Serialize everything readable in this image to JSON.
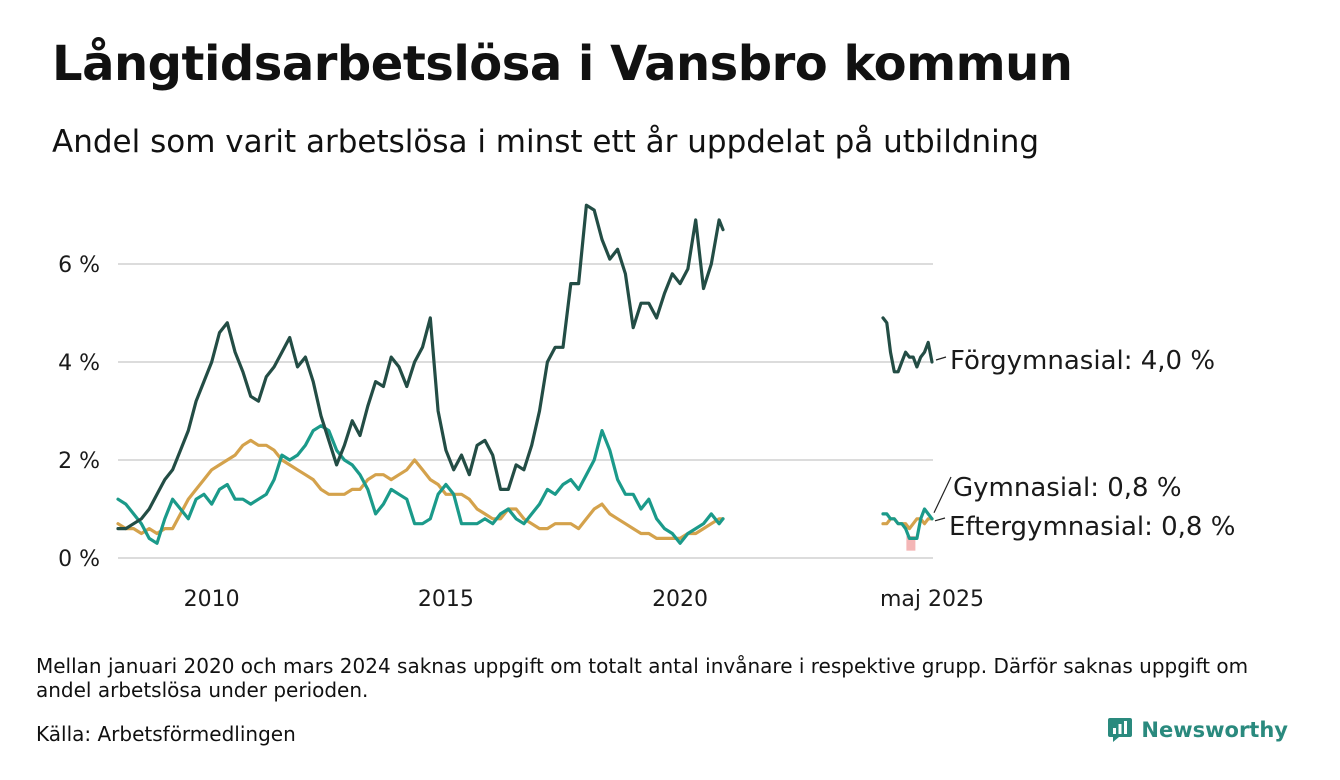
{
  "title": "Långtidsarbetslösa i Vansbro kommun",
  "subtitle": "Andel som varit arbetslösa i minst ett år uppdelat på utbildning",
  "note": "Mellan januari 2020 och mars 2024 saknas uppgift om totalt antal invånare i respektive grupp. Därför saknas uppgift om andel arbetslösa under perioden.",
  "source": "Källa: Arbetsförmedlingen",
  "brand": "Newsworthy",
  "colors": {
    "Förgymnasial": "#234d45",
    "Gymnasial": "#1b9a8a",
    "Eftergymnasial": "#d4a24c",
    "grid": "#dcdcdc",
    "marker": "#f4b6b6",
    "brand": "#2a8a7e"
  },
  "chart_data": {
    "type": "line",
    "title": "Långtidsarbetslösa i Vansbro kommun",
    "ylabel": "",
    "ylim": [
      0,
      7.5
    ],
    "yticks": [
      0,
      2,
      4,
      6
    ],
    "ytick_labels": [
      "0 %",
      "2 %",
      "4 %",
      "6 %"
    ],
    "xtick_labels": [
      "2010",
      "2015",
      "2020",
      "maj 2025"
    ],
    "grid": true,
    "legend": "end-of-line labels (right)",
    "end_labels": [
      {
        "series": "Förgymnasial",
        "text": "Förgymnasial: 4,0 %"
      },
      {
        "series": "Gymnasial",
        "text": "Gymnasial: 0,8 %"
      },
      {
        "series": "Eftergymnasial",
        "text": "Eftergymnasial: 0,8 %"
      }
    ],
    "segments": [
      {
        "label": "2008–2020",
        "x_start": "2008-01",
        "x_end": "2020-12"
      },
      {
        "label": "2024–2025",
        "x_start": "2024-04",
        "x_end": "2025-05"
      }
    ],
    "series": [
      {
        "name": "Förgymnasial",
        "points": [
          [
            "2008-01",
            0.6
          ],
          [
            "2008-03",
            0.6
          ],
          [
            "2008-05",
            0.7
          ],
          [
            "2008-07",
            0.8
          ],
          [
            "2008-09",
            1.0
          ],
          [
            "2008-11",
            1.3
          ],
          [
            "2009-01",
            1.6
          ],
          [
            "2009-03",
            1.8
          ],
          [
            "2009-05",
            2.2
          ],
          [
            "2009-07",
            2.6
          ],
          [
            "2009-09",
            3.2
          ],
          [
            "2009-11",
            3.6
          ],
          [
            "2010-01",
            4.0
          ],
          [
            "2010-03",
            4.6
          ],
          [
            "2010-05",
            4.8
          ],
          [
            "2010-07",
            4.2
          ],
          [
            "2010-09",
            3.8
          ],
          [
            "2010-11",
            3.3
          ],
          [
            "2011-01",
            3.2
          ],
          [
            "2011-03",
            3.7
          ],
          [
            "2011-05",
            3.9
          ],
          [
            "2011-07",
            4.2
          ],
          [
            "2011-09",
            4.5
          ],
          [
            "2011-11",
            3.9
          ],
          [
            "2012-01",
            4.1
          ],
          [
            "2012-03",
            3.6
          ],
          [
            "2012-05",
            2.9
          ],
          [
            "2012-07",
            2.4
          ],
          [
            "2012-09",
            1.9
          ],
          [
            "2012-11",
            2.3
          ],
          [
            "2013-01",
            2.8
          ],
          [
            "2013-03",
            2.5
          ],
          [
            "2013-05",
            3.1
          ],
          [
            "2013-07",
            3.6
          ],
          [
            "2013-09",
            3.5
          ],
          [
            "2013-11",
            4.1
          ],
          [
            "2014-01",
            3.9
          ],
          [
            "2014-03",
            3.5
          ],
          [
            "2014-05",
            4.0
          ],
          [
            "2014-07",
            4.3
          ],
          [
            "2014-09",
            4.9
          ],
          [
            "2014-11",
            3.0
          ],
          [
            "2015-01",
            2.2
          ],
          [
            "2015-03",
            1.8
          ],
          [
            "2015-05",
            2.1
          ],
          [
            "2015-07",
            1.7
          ],
          [
            "2015-09",
            2.3
          ],
          [
            "2015-11",
            2.4
          ],
          [
            "2016-01",
            2.1
          ],
          [
            "2016-03",
            1.4
          ],
          [
            "2016-05",
            1.4
          ],
          [
            "2016-07",
            1.9
          ],
          [
            "2016-09",
            1.8
          ],
          [
            "2016-11",
            2.3
          ],
          [
            "2017-01",
            3.0
          ],
          [
            "2017-03",
            4.0
          ],
          [
            "2017-05",
            4.3
          ],
          [
            "2017-07",
            4.3
          ],
          [
            "2017-09",
            5.6
          ],
          [
            "2017-11",
            5.6
          ],
          [
            "2018-01",
            7.2
          ],
          [
            "2018-03",
            7.1
          ],
          [
            "2018-05",
            6.5
          ],
          [
            "2018-07",
            6.1
          ],
          [
            "2018-09",
            6.3
          ],
          [
            "2018-11",
            5.8
          ],
          [
            "2019-01",
            4.7
          ],
          [
            "2019-03",
            5.2
          ],
          [
            "2019-05",
            5.2
          ],
          [
            "2019-07",
            4.9
          ],
          [
            "2019-09",
            5.4
          ],
          [
            "2019-11",
            5.8
          ],
          [
            "2020-01",
            5.6
          ],
          [
            "2020-03",
            5.9
          ],
          [
            "2020-05",
            6.9
          ],
          [
            "2020-07",
            5.5
          ],
          [
            "2020-09",
            6.0
          ],
          [
            "2020-11",
            6.9
          ],
          [
            "2020-12",
            6.7
          ],
          [
            "2024-04",
            4.9
          ],
          [
            "2024-05",
            4.8
          ],
          [
            "2024-06",
            4.2
          ],
          [
            "2024-07",
            3.8
          ],
          [
            "2024-08",
            3.8
          ],
          [
            "2024-09",
            4.0
          ],
          [
            "2024-10",
            4.2
          ],
          [
            "2024-11",
            4.1
          ],
          [
            "2024-12",
            4.1
          ],
          [
            "2025-01",
            3.9
          ],
          [
            "2025-02",
            4.1
          ],
          [
            "2025-03",
            4.2
          ],
          [
            "2025-04",
            4.4
          ],
          [
            "2025-05",
            4.0
          ]
        ]
      },
      {
        "name": "Gymnasial",
        "points": [
          [
            "2008-01",
            1.2
          ],
          [
            "2008-03",
            1.1
          ],
          [
            "2008-05",
            0.9
          ],
          [
            "2008-07",
            0.7
          ],
          [
            "2008-09",
            0.4
          ],
          [
            "2008-11",
            0.3
          ],
          [
            "2009-01",
            0.8
          ],
          [
            "2009-03",
            1.2
          ],
          [
            "2009-05",
            1.0
          ],
          [
            "2009-07",
            0.8
          ],
          [
            "2009-09",
            1.2
          ],
          [
            "2009-11",
            1.3
          ],
          [
            "2010-01",
            1.1
          ],
          [
            "2010-03",
            1.4
          ],
          [
            "2010-05",
            1.5
          ],
          [
            "2010-07",
            1.2
          ],
          [
            "2010-09",
            1.2
          ],
          [
            "2010-11",
            1.1
          ],
          [
            "2011-01",
            1.2
          ],
          [
            "2011-03",
            1.3
          ],
          [
            "2011-05",
            1.6
          ],
          [
            "2011-07",
            2.1
          ],
          [
            "2011-09",
            2.0
          ],
          [
            "2011-11",
            2.1
          ],
          [
            "2012-01",
            2.3
          ],
          [
            "2012-03",
            2.6
          ],
          [
            "2012-05",
            2.7
          ],
          [
            "2012-07",
            2.6
          ],
          [
            "2012-09",
            2.2
          ],
          [
            "2012-11",
            2.0
          ],
          [
            "2013-01",
            1.9
          ],
          [
            "2013-03",
            1.7
          ],
          [
            "2013-05",
            1.4
          ],
          [
            "2013-07",
            0.9
          ],
          [
            "2013-09",
            1.1
          ],
          [
            "2013-11",
            1.4
          ],
          [
            "2014-01",
            1.3
          ],
          [
            "2014-03",
            1.2
          ],
          [
            "2014-05",
            0.7
          ],
          [
            "2014-07",
            0.7
          ],
          [
            "2014-09",
            0.8
          ],
          [
            "2014-11",
            1.3
          ],
          [
            "2015-01",
            1.5
          ],
          [
            "2015-03",
            1.3
          ],
          [
            "2015-05",
            0.7
          ],
          [
            "2015-07",
            0.7
          ],
          [
            "2015-09",
            0.7
          ],
          [
            "2015-11",
            0.8
          ],
          [
            "2016-01",
            0.7
          ],
          [
            "2016-03",
            0.9
          ],
          [
            "2016-05",
            1.0
          ],
          [
            "2016-07",
            0.8
          ],
          [
            "2016-09",
            0.7
          ],
          [
            "2016-11",
            0.9
          ],
          [
            "2017-01",
            1.1
          ],
          [
            "2017-03",
            1.4
          ],
          [
            "2017-05",
            1.3
          ],
          [
            "2017-07",
            1.5
          ],
          [
            "2017-09",
            1.6
          ],
          [
            "2017-11",
            1.4
          ],
          [
            "2018-01",
            1.7
          ],
          [
            "2018-03",
            2.0
          ],
          [
            "2018-05",
            2.6
          ],
          [
            "2018-07",
            2.2
          ],
          [
            "2018-09",
            1.6
          ],
          [
            "2018-11",
            1.3
          ],
          [
            "2019-01",
            1.3
          ],
          [
            "2019-03",
            1.0
          ],
          [
            "2019-05",
            1.2
          ],
          [
            "2019-07",
            0.8
          ],
          [
            "2019-09",
            0.6
          ],
          [
            "2019-11",
            0.5
          ],
          [
            "2020-01",
            0.3
          ],
          [
            "2020-03",
            0.5
          ],
          [
            "2020-05",
            0.6
          ],
          [
            "2020-07",
            0.7
          ],
          [
            "2020-09",
            0.9
          ],
          [
            "2020-11",
            0.7
          ],
          [
            "2020-12",
            0.8
          ],
          [
            "2024-04",
            0.9
          ],
          [
            "2024-05",
            0.9
          ],
          [
            "2024-06",
            0.8
          ],
          [
            "2024-07",
            0.8
          ],
          [
            "2024-08",
            0.7
          ],
          [
            "2024-09",
            0.7
          ],
          [
            "2024-10",
            0.6
          ],
          [
            "2024-11",
            0.4
          ],
          [
            "2024-12",
            0.4
          ],
          [
            "2025-01",
            0.4
          ],
          [
            "2025-02",
            0.8
          ],
          [
            "2025-03",
            1.0
          ],
          [
            "2025-04",
            0.9
          ],
          [
            "2025-05",
            0.8
          ]
        ]
      },
      {
        "name": "Eftergymnasial",
        "points": [
          [
            "2008-01",
            0.7
          ],
          [
            "2008-03",
            0.6
          ],
          [
            "2008-05",
            0.6
          ],
          [
            "2008-07",
            0.5
          ],
          [
            "2008-09",
            0.6
          ],
          [
            "2008-11",
            0.5
          ],
          [
            "2009-01",
            0.6
          ],
          [
            "2009-03",
            0.6
          ],
          [
            "2009-05",
            0.9
          ],
          [
            "2009-07",
            1.2
          ],
          [
            "2009-09",
            1.4
          ],
          [
            "2009-11",
            1.6
          ],
          [
            "2010-01",
            1.8
          ],
          [
            "2010-03",
            1.9
          ],
          [
            "2010-05",
            2.0
          ],
          [
            "2010-07",
            2.1
          ],
          [
            "2010-09",
            2.3
          ],
          [
            "2010-11",
            2.4
          ],
          [
            "2011-01",
            2.3
          ],
          [
            "2011-03",
            2.3
          ],
          [
            "2011-05",
            2.2
          ],
          [
            "2011-07",
            2.0
          ],
          [
            "2011-09",
            1.9
          ],
          [
            "2011-11",
            1.8
          ],
          [
            "2012-01",
            1.7
          ],
          [
            "2012-03",
            1.6
          ],
          [
            "2012-05",
            1.4
          ],
          [
            "2012-07",
            1.3
          ],
          [
            "2012-09",
            1.3
          ],
          [
            "2012-11",
            1.3
          ],
          [
            "2013-01",
            1.4
          ],
          [
            "2013-03",
            1.4
          ],
          [
            "2013-05",
            1.6
          ],
          [
            "2013-07",
            1.7
          ],
          [
            "2013-09",
            1.7
          ],
          [
            "2013-11",
            1.6
          ],
          [
            "2014-01",
            1.7
          ],
          [
            "2014-03",
            1.8
          ],
          [
            "2014-05",
            2.0
          ],
          [
            "2014-07",
            1.8
          ],
          [
            "2014-09",
            1.6
          ],
          [
            "2014-11",
            1.5
          ],
          [
            "2015-01",
            1.3
          ],
          [
            "2015-03",
            1.3
          ],
          [
            "2015-05",
            1.3
          ],
          [
            "2015-07",
            1.2
          ],
          [
            "2015-09",
            1.0
          ],
          [
            "2015-11",
            0.9
          ],
          [
            "2016-01",
            0.8
          ],
          [
            "2016-03",
            0.8
          ],
          [
            "2016-05",
            1.0
          ],
          [
            "2016-07",
            1.0
          ],
          [
            "2016-09",
            0.8
          ],
          [
            "2016-11",
            0.7
          ],
          [
            "2017-01",
            0.6
          ],
          [
            "2017-03",
            0.6
          ],
          [
            "2017-05",
            0.7
          ],
          [
            "2017-07",
            0.7
          ],
          [
            "2017-09",
            0.7
          ],
          [
            "2017-11",
            0.6
          ],
          [
            "2018-01",
            0.8
          ],
          [
            "2018-03",
            1.0
          ],
          [
            "2018-05",
            1.1
          ],
          [
            "2018-07",
            0.9
          ],
          [
            "2018-09",
            0.8
          ],
          [
            "2018-11",
            0.7
          ],
          [
            "2019-01",
            0.6
          ],
          [
            "2019-03",
            0.5
          ],
          [
            "2019-05",
            0.5
          ],
          [
            "2019-07",
            0.4
          ],
          [
            "2019-09",
            0.4
          ],
          [
            "2019-11",
            0.4
          ],
          [
            "2020-01",
            0.4
          ],
          [
            "2020-03",
            0.5
          ],
          [
            "2020-05",
            0.5
          ],
          [
            "2020-07",
            0.6
          ],
          [
            "2020-09",
            0.7
          ],
          [
            "2020-11",
            0.8
          ],
          [
            "2020-12",
            0.8
          ],
          [
            "2024-04",
            0.7
          ],
          [
            "2024-05",
            0.7
          ],
          [
            "2024-06",
            0.8
          ],
          [
            "2024-07",
            0.8
          ],
          [
            "2024-08",
            0.7
          ],
          [
            "2024-09",
            0.7
          ],
          [
            "2024-10",
            0.7
          ],
          [
            "2024-11",
            0.6
          ],
          [
            "2024-12",
            0.7
          ],
          [
            "2025-01",
            0.8
          ],
          [
            "2025-02",
            0.8
          ],
          [
            "2025-03",
            0.7
          ],
          [
            "2025-04",
            0.8
          ],
          [
            "2025-05",
            0.8
          ]
        ]
      }
    ]
  }
}
